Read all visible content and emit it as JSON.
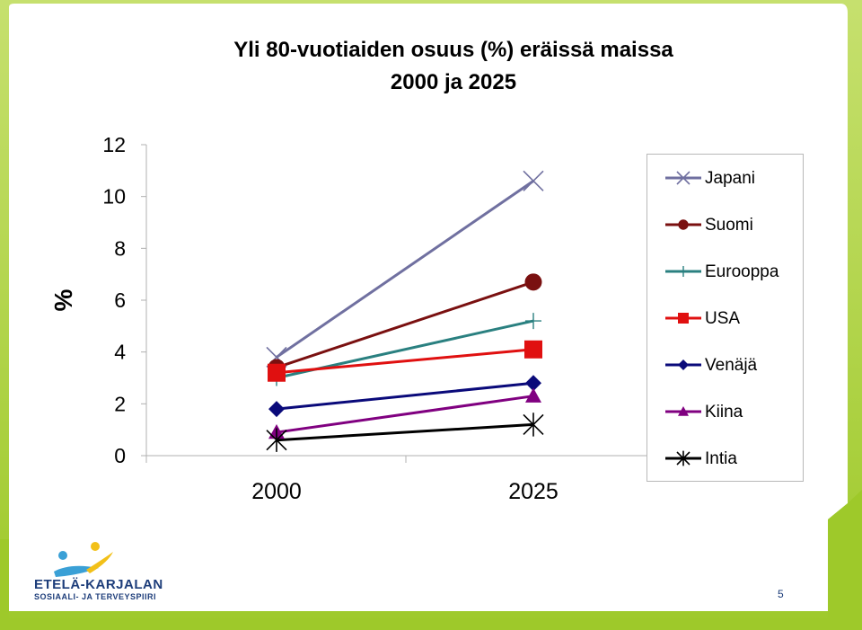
{
  "slide": {
    "title_line1": "Yli 80-vuotiaiden osuus (%) eräissä maissa",
    "title_line2": "2000 ja 2025",
    "page_number": "5",
    "logo_line1": "ETELÄ-KARJALAN",
    "logo_line2": "SOSIAALI- JA TERVEYSPIIRI",
    "accent_green": "#9ec92a",
    "logo_blue": "#3aa0d6",
    "logo_yellow": "#f2c018",
    "logo_navy": "#1d3d7a"
  },
  "chart_data": {
    "type": "line",
    "title": "",
    "xlabel": "",
    "ylabel": "%",
    "categories": [
      "2000",
      "2025"
    ],
    "ylim": [
      0,
      12
    ],
    "yticks": [
      "0",
      "2",
      "4",
      "6",
      "8",
      "10",
      "12"
    ],
    "legend_position": "right",
    "grid": false,
    "series": [
      {
        "name": "Japani",
        "values": [
          3.8,
          10.6
        ],
        "color": "#7070a0",
        "marker": "x"
      },
      {
        "name": "Suomi",
        "values": [
          3.4,
          6.7
        ],
        "color": "#7a1010",
        "marker": "circle"
      },
      {
        "name": "Eurooppa",
        "values": [
          3.0,
          5.2
        ],
        "color": "#2a8080",
        "marker": "plus"
      },
      {
        "name": "USA",
        "values": [
          3.2,
          4.1
        ],
        "color": "#e01010",
        "marker": "square"
      },
      {
        "name": "Venäjä",
        "values": [
          1.8,
          2.8
        ],
        "color": "#0a0a7a",
        "marker": "diamond"
      },
      {
        "name": "Kiina",
        "values": [
          0.9,
          2.3
        ],
        "color": "#800080",
        "marker": "triangle"
      },
      {
        "name": "Intia",
        "values": [
          0.6,
          1.2
        ],
        "color": "#000000",
        "marker": "star"
      }
    ]
  }
}
